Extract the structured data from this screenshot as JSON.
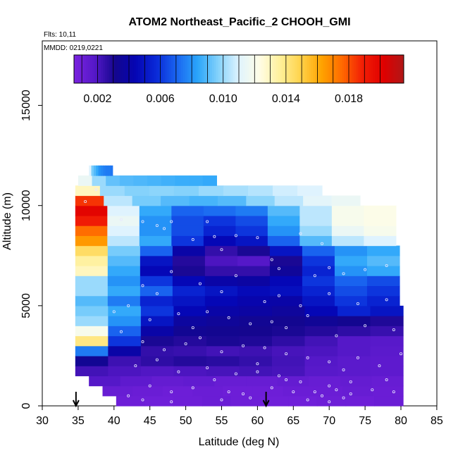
{
  "header": {
    "title": "ATOM2 Northeast_Pacific_2 CHOOH_GMI",
    "flights": "Flts: 10,11",
    "dates": "MMDD: 0219,0221"
  },
  "colors": {
    "colormap": [
      "#7B22E0",
      "#5518C8",
      "#14068E",
      "#0505B4",
      "#0A2AD8",
      "#1A66F0",
      "#2AA5FA",
      "#84D2FB",
      "#DFF3FE",
      "#FFFDE6",
      "#FFF09A",
      "#FFD24A",
      "#FFA400",
      "#FF6A00",
      "#F21E05",
      "#E00000",
      "#B01717"
    ],
    "arrow": "#000000",
    "marker": "#e8e8ff"
  },
  "chart_data": {
    "type": "heatmap",
    "title": "ATOM2 Northeast_Pacific_2 CHOOH_GMI",
    "xlabel": "Latitude (deg N)",
    "ylabel": "Altitude (m)",
    "xlim": [
      30,
      85
    ],
    "ylim": [
      0,
      17500
    ],
    "xticks": [
      "30",
      "35",
      "40",
      "45",
      "50",
      "55",
      "60",
      "65",
      "70",
      "75",
      "80",
      "85"
    ],
    "yticks": [
      "0",
      "5000",
      "10000",
      "15000"
    ],
    "colorbar": {
      "min": 0.0005,
      "max": 0.0215,
      "ticks": [
        "0.002",
        "0.006",
        "0.010",
        "0.014",
        "0.018"
      ]
    },
    "arrows_latitude": [
      34.7,
      61.2
    ],
    "bin_height_m": 500,
    "layers": [
      {
        "alt": 250,
        "lat_start": 40.3,
        "lat_end": 80.3,
        "values": [
          0.001,
          0.0009,
          0.001,
          0.0011,
          0.001,
          0.0009,
          0.0009,
          0.001,
          0.001,
          0.0011
        ]
      },
      {
        "alt": 750,
        "lat_start": 38.4,
        "lat_end": 80.3,
        "values": [
          0.0012,
          0.0011,
          0.001,
          0.0011,
          0.001,
          0.001,
          0.0011,
          0.0011,
          0.0012,
          0.0011
        ]
      },
      {
        "alt": 1250,
        "lat_start": 36.5,
        "lat_end": 80.3,
        "values": [
          0.0018,
          0.0015,
          0.0013,
          0.0014,
          0.0012,
          0.0012,
          0.0013,
          0.0012,
          0.0013,
          0.0012
        ]
      },
      {
        "alt": 1750,
        "lat_start": 34.6,
        "lat_end": 80.3,
        "values": [
          0.0022,
          0.002,
          0.0019,
          0.002,
          0.0021,
          0.0022,
          0.0021,
          0.0017,
          0.0016,
          0.0015
        ]
      },
      {
        "alt": 2250,
        "lat_start": 34.6,
        "lat_end": 80.3,
        "values": [
          0.0033,
          0.0023,
          0.0026,
          0.0028,
          0.0027,
          0.0025,
          0.0022,
          0.0018,
          0.0016,
          0.0015
        ]
      },
      {
        "alt": 2750,
        "lat_start": 34.6,
        "lat_end": 80.3,
        "values": [
          0.0075,
          0.004,
          0.0025,
          0.0024,
          0.0022,
          0.0023,
          0.0021,
          0.002,
          0.0018,
          0.0016
        ]
      },
      {
        "alt": 3250,
        "lat_start": 34.6,
        "lat_end": 80.3,
        "values": [
          0.014,
          0.006,
          0.003,
          0.0028,
          0.003,
          0.0029,
          0.0026,
          0.0022,
          0.0018,
          0.0017
        ]
      },
      {
        "alt": 3750,
        "lat_start": 34.6,
        "lat_end": 80.3,
        "values": [
          0.012,
          0.007,
          0.004,
          0.0033,
          0.0032,
          0.0031,
          0.003,
          0.0028,
          0.0026,
          0.0024
        ]
      },
      {
        "alt": 4250,
        "lat_start": 34.6,
        "lat_end": 80.3,
        "values": [
          0.01,
          0.008,
          0.005,
          0.0037,
          0.0035,
          0.0033,
          0.0032,
          0.0034,
          0.0032,
          0.0029
        ]
      },
      {
        "alt": 4750,
        "lat_start": 34.6,
        "lat_end": 80.3,
        "values": [
          0.0095,
          0.0085,
          0.006,
          0.0045,
          0.004,
          0.0038,
          0.0036,
          0.0045,
          0.0055,
          0.005
        ]
      },
      {
        "alt": 5250,
        "lat_start": 34.6,
        "lat_end": 79.8,
        "values": [
          0.009,
          0.0075,
          0.0055,
          0.005,
          0.0045,
          0.0042,
          0.004,
          0.005,
          0.006,
          0.0055
        ]
      },
      {
        "alt": 5750,
        "lat_start": 34.6,
        "lat_end": 79.8,
        "values": [
          0.01,
          0.0085,
          0.007,
          0.0055,
          0.005,
          0.0046,
          0.0048,
          0.0055,
          0.0065,
          0.006
        ]
      },
      {
        "alt": 6250,
        "lat_start": 34.6,
        "lat_end": 79.8,
        "values": [
          0.01,
          0.008,
          0.006,
          0.0045,
          0.004,
          0.0038,
          0.0045,
          0.006,
          0.007,
          0.0065
        ]
      },
      {
        "alt": 6750,
        "lat_start": 34.6,
        "lat_end": 79.8,
        "values": [
          0.013,
          0.0085,
          0.0045,
          0.003,
          0.0025,
          0.0025,
          0.0035,
          0.0055,
          0.008,
          0.0085
        ]
      },
      {
        "alt": 7250,
        "lat_start": 34.6,
        "lat_end": 79.8,
        "values": [
          0.0135,
          0.009,
          0.005,
          0.0028,
          0.002,
          0.0018,
          0.003,
          0.006,
          0.0085,
          0.009
        ]
      },
      {
        "alt": 7750,
        "lat_start": 34.6,
        "lat_end": 79.8,
        "values": [
          0.0145,
          0.0095,
          0.007,
          0.004,
          0.0025,
          0.003,
          0.005,
          0.007,
          0.008,
          0.0085
        ]
      },
      {
        "alt": 8250,
        "lat_start": 34.6,
        "lat_end": 79.3,
        "values": [
          0.0165,
          0.0105,
          0.0085,
          0.006,
          0.0045,
          0.005,
          0.007,
          0.009,
          0.0105,
          0.011
        ]
      },
      {
        "alt": 8750,
        "lat_start": 34.6,
        "lat_end": 79.3,
        "values": [
          0.0175,
          0.011,
          0.008,
          0.0065,
          0.0055,
          0.006,
          0.008,
          0.01,
          0.0115,
          0.012
        ]
      },
      {
        "alt": 9250,
        "lat_start": 34.6,
        "lat_end": 79.3,
        "values": [
          0.019,
          0.0115,
          0.008,
          0.0065,
          0.006,
          0.0065,
          0.0085,
          0.0105,
          0.012,
          0.0122
        ]
      },
      {
        "alt": 9750,
        "lat_start": 34.6,
        "lat_end": 79.3,
        "values": [
          0.02,
          0.011,
          0.0085,
          0.007,
          0.0072,
          0.0075,
          0.009,
          0.0105,
          0.012,
          0.0122
        ]
      },
      {
        "alt": 10250,
        "lat_start": 34.6,
        "lat_end": 74.3,
        "values": [
          0.0185,
          0.0105,
          0.0095,
          0.009,
          0.0088,
          0.009,
          0.0098,
          0.0105,
          0.0112,
          0.0115
        ]
      },
      {
        "alt": 10750,
        "lat_start": 34.6,
        "lat_end": 69.0,
        "values": [
          0.013,
          0.01,
          0.0097,
          0.0098,
          0.0097,
          0.01,
          0.0102,
          0.0104,
          0.0108,
          0.011
        ]
      },
      {
        "alt": 11250,
        "lat_start": 35.0,
        "lat_end": 54.3,
        "values": [
          0.0115,
          0.01,
          0.0092,
          0.009,
          0.0089,
          0.0088,
          0.0087,
          0.0086,
          0.0086,
          0.0085
        ]
      },
      {
        "alt": 11750,
        "lat_start": 36.5,
        "lat_end": 39.8,
        "values": [
          0.011,
          0.0095,
          0.009,
          0.0085,
          0.008,
          0.0078,
          0.0076,
          0.0075,
          0.0075,
          0.0074
        ]
      }
    ],
    "samples": [
      [
        36,
        10200
      ],
      [
        37.5,
        10800
      ],
      [
        41,
        9300
      ],
      [
        44,
        9200
      ],
      [
        46,
        9000
      ],
      [
        47,
        8850
      ],
      [
        48,
        9200
      ],
      [
        51,
        8300
      ],
      [
        53,
        9200
      ],
      [
        54,
        8450
      ],
      [
        55,
        7800
      ],
      [
        57,
        8500
      ],
      [
        60,
        8400
      ],
      [
        62,
        7300
      ],
      [
        63,
        6850
      ],
      [
        66,
        8600
      ],
      [
        68,
        6500
      ],
      [
        69,
        8100
      ],
      [
        70,
        6900
      ],
      [
        72,
        6600
      ],
      [
        75,
        6800
      ],
      [
        78,
        7000
      ],
      [
        44,
        6000
      ],
      [
        46,
        5600
      ],
      [
        48,
        6700
      ],
      [
        52,
        6100
      ],
      [
        55,
        5700
      ],
      [
        57,
        6500
      ],
      [
        61,
        5200
      ],
      [
        63,
        5500
      ],
      [
        66,
        5000
      ],
      [
        70,
        5600
      ],
      [
        74,
        5100
      ],
      [
        78,
        5300
      ],
      [
        40,
        4700
      ],
      [
        42,
        5000
      ],
      [
        45,
        4300
      ],
      [
        49,
        4600
      ],
      [
        51,
        3900
      ],
      [
        53,
        4700
      ],
      [
        56,
        4400
      ],
      [
        59,
        4100
      ],
      [
        62,
        4200
      ],
      [
        64,
        3900
      ],
      [
        67,
        4500
      ],
      [
        71,
        3500
      ],
      [
        75,
        4000
      ],
      [
        79,
        3800
      ],
      [
        41,
        3700
      ],
      [
        44,
        3200
      ],
      [
        47,
        2800
      ],
      [
        50,
        3100
      ],
      [
        52,
        3400
      ],
      [
        55,
        2700
      ],
      [
        58,
        3000
      ],
      [
        61,
        2900
      ],
      [
        64,
        2600
      ],
      [
        67,
        2400
      ],
      [
        70,
        2200
      ],
      [
        72,
        1800
      ],
      [
        74,
        2400
      ],
      [
        77,
        2000
      ],
      [
        80,
        2600
      ],
      [
        43,
        2000
      ],
      [
        46,
        2300
      ],
      [
        49,
        1700
      ],
      [
        53,
        1900
      ],
      [
        57,
        1600
      ],
      [
        60,
        2100
      ],
      [
        63,
        1500
      ],
      [
        66,
        1200
      ],
      [
        70,
        1000
      ],
      [
        73,
        1200
      ],
      [
        76,
        800
      ],
      [
        79,
        700
      ],
      [
        45,
        1000
      ],
      [
        48,
        700
      ],
      [
        51,
        900
      ],
      [
        54,
        1300
      ],
      [
        56,
        700
      ],
      [
        59,
        400
      ],
      [
        62,
        900
      ],
      [
        65,
        700
      ],
      [
        67,
        300
      ],
      [
        69,
        500
      ],
      [
        70,
        200
      ],
      [
        71,
        800
      ],
      [
        72,
        400
      ],
      [
        73,
        600
      ],
      [
        42,
        500
      ],
      [
        44,
        300
      ],
      [
        48,
        200
      ],
      [
        55,
        300
      ],
      [
        58,
        600
      ],
      [
        60,
        1700
      ],
      [
        64,
        1300
      ],
      [
        68,
        700
      ],
      [
        78,
        1300
      ]
    ]
  }
}
